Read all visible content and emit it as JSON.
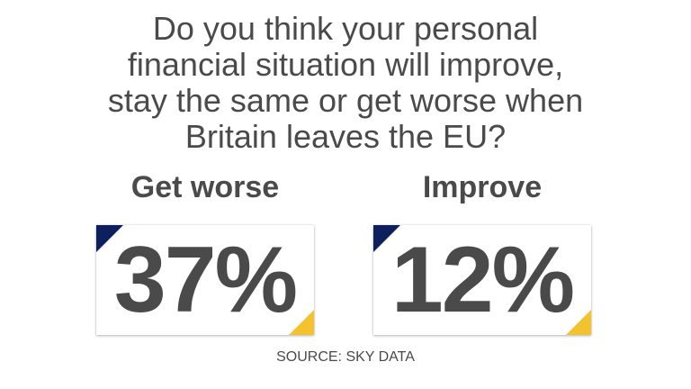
{
  "question": {
    "lines": [
      "Do you think your personal",
      "financial situation will improve,",
      "stay the same or get worse when",
      "Britain leaves the EU?"
    ]
  },
  "source": "SOURCE: SKY DATA",
  "colors": {
    "text": "#4a4a4a",
    "corner_navy": "#0d1f5c",
    "corner_yellow": "#f2c230",
    "background": "#ffffff"
  },
  "chart_data": {
    "type": "table",
    "title": "Do you think your personal financial situation will improve, stay the same or get worse when Britain leaves the EU?",
    "categories": [
      "Get worse",
      "Improve"
    ],
    "values": [
      37,
      12
    ],
    "value_labels": [
      "37%",
      "12%"
    ],
    "unit": "%",
    "source": "SOURCE: SKY DATA"
  }
}
